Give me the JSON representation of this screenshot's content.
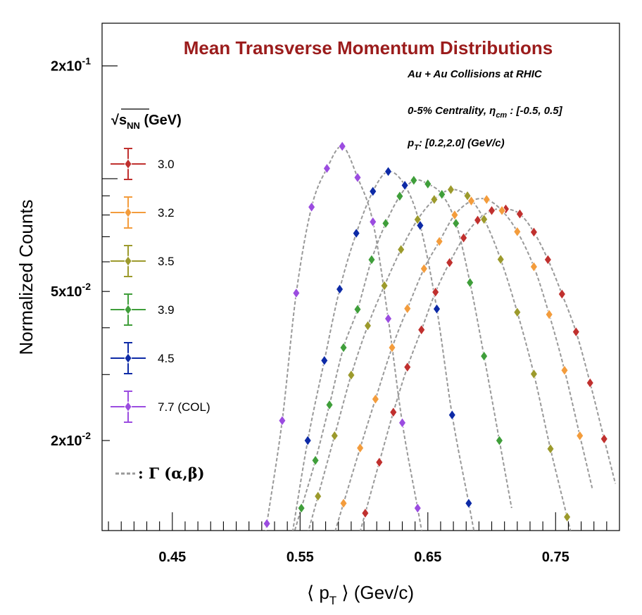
{
  "chart_data": {
    "type": "scatter",
    "title": "Mean Transverse Momentum Distributions",
    "annotations": [
      "Au + Au Collisions at RHIC",
      "0-5% Centrality, ηcm : [-0.5, 0.5]",
      "pT: [0.2,2.0] (GeV/c)"
    ],
    "xlabel": "⟨ pT ⟩ (Gev/c)",
    "ylabel": "Normalized Counts",
    "yscale": "log",
    "xlim": [
      0.395,
      0.8
    ],
    "ylim": [
      0.0115,
      0.26
    ],
    "xticks": [
      {
        "value": 0.45,
        "label": "0.45"
      },
      {
        "value": 0.55,
        "label": "0.55"
      },
      {
        "value": 0.65,
        "label": "0.65"
      },
      {
        "value": 0.75,
        "label": "0.75"
      }
    ],
    "yticks": [
      {
        "value": 0.2,
        "base": "2x10",
        "exp": "-1"
      },
      {
        "value": 0.05,
        "base": "5x10",
        "exp": "-2"
      },
      {
        "value": 0.02,
        "base": "2x10",
        "exp": "-2"
      }
    ],
    "legend": {
      "title": "√s",
      "title_sub": "NN",
      "title_suffix": " (GeV)",
      "placement": "left",
      "fit_label": ": Γ (α,β)"
    },
    "series": [
      {
        "name": "3.0",
        "color": "#c0302e",
        "x": [
          0.601,
          0.612,
          0.623,
          0.634,
          0.645,
          0.656,
          0.667,
          0.678,
          0.689,
          0.7,
          0.711,
          0.722,
          0.733,
          0.744,
          0.755,
          0.766,
          0.777,
          0.788
        ],
        "y": [
          0.0128,
          0.0175,
          0.0238,
          0.0314,
          0.0395,
          0.0498,
          0.0597,
          0.0695,
          0.0775,
          0.0822,
          0.083,
          0.0805,
          0.072,
          0.0608,
          0.0492,
          0.039,
          0.0285,
          0.0202
        ]
      },
      {
        "name": "3.2",
        "color": "#f39c3c",
        "x": [
          0.584,
          0.597,
          0.609,
          0.622,
          0.634,
          0.647,
          0.659,
          0.671,
          0.684,
          0.696,
          0.708,
          0.72,
          0.733,
          0.745,
          0.757,
          0.769
        ],
        "y": [
          0.0136,
          0.0191,
          0.0258,
          0.0354,
          0.045,
          0.0575,
          0.068,
          0.08,
          0.0872,
          0.088,
          0.0822,
          0.0722,
          0.0582,
          0.0434,
          0.0308,
          0.0206
        ]
      },
      {
        "name": "3.5",
        "color": "#9c9a2c",
        "x": [
          0.564,
          0.577,
          0.59,
          0.603,
          0.616,
          0.629,
          0.642,
          0.655,
          0.668,
          0.681,
          0.694,
          0.707,
          0.72,
          0.733,
          0.746,
          0.759
        ],
        "y": [
          0.0142,
          0.0206,
          0.0299,
          0.0405,
          0.0518,
          0.0647,
          0.0778,
          0.088,
          0.0935,
          0.09,
          0.0779,
          0.0609,
          0.044,
          0.0301,
          0.019,
          0.0125
        ]
      },
      {
        "name": "3.9",
        "color": "#3f9e3a",
        "x": [
          0.551,
          0.562,
          0.573,
          0.584,
          0.595,
          0.606,
          0.617,
          0.628,
          0.639,
          0.65,
          0.661,
          0.672,
          0.683,
          0.694,
          0.706
        ],
        "y": [
          0.0132,
          0.0177,
          0.0249,
          0.0354,
          0.0448,
          0.0608,
          0.076,
          0.0898,
          0.099,
          0.0968,
          0.0908,
          0.076,
          0.0528,
          0.0336,
          0.02
        ]
      },
      {
        "name": "4.5",
        "color": "#0d2aa6",
        "x": [
          0.543,
          0.556,
          0.569,
          0.581,
          0.594,
          0.607,
          0.619,
          0.632,
          0.644,
          0.657,
          0.669,
          0.682
        ],
        "y": [
          0.0108,
          0.02,
          0.0327,
          0.0507,
          0.0715,
          0.0925,
          0.1045,
          0.096,
          0.075,
          0.0449,
          0.0234,
          0.0136
        ]
      },
      {
        "name": "7.7 (COL)",
        "color": "#9b4ce0",
        "x": [
          0.524,
          0.536,
          0.547,
          0.559,
          0.571,
          0.583,
          0.595,
          0.607,
          0.619,
          0.63,
          0.642
        ],
        "y": [
          0.012,
          0.0226,
          0.0495,
          0.084,
          0.1065,
          0.122,
          0.1007,
          0.0767,
          0.0423,
          0.0223,
          0.0132
        ]
      }
    ]
  }
}
